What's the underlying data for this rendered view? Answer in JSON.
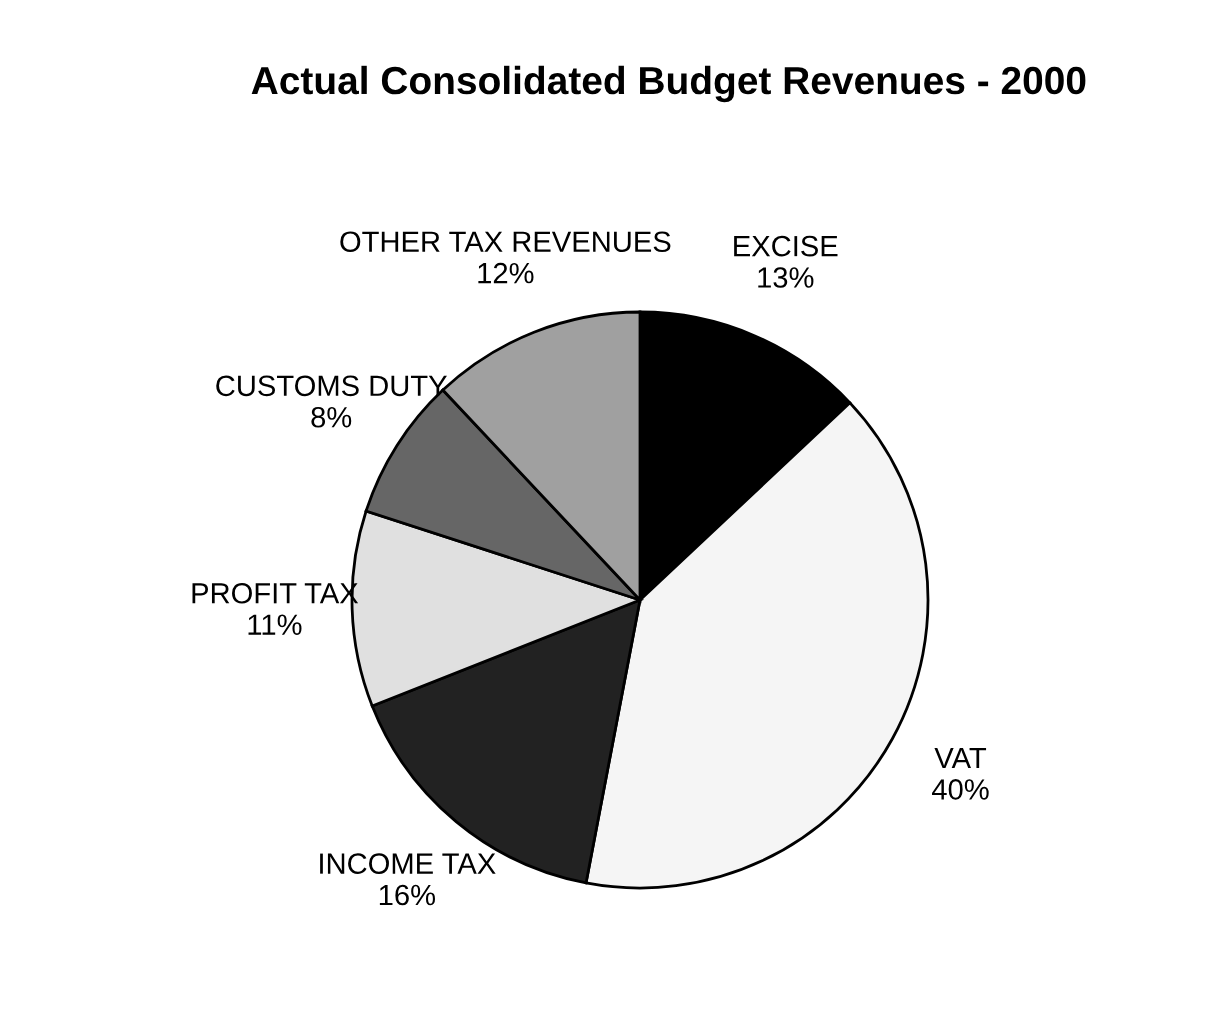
{
  "chart_data": {
    "type": "pie",
    "title": "Actual Consolidated Budget Revenues - 2000",
    "categories": [
      "EXCISE",
      "VAT",
      "INCOME TAX",
      "PROFIT TAX",
      "CUSTOMS DUTY",
      "OTHER TAX REVENUES"
    ],
    "values": [
      13,
      40,
      16,
      11,
      8,
      12
    ],
    "value_labels": [
      "13%",
      "40%",
      "16%",
      "11%",
      "8%",
      "12%"
    ],
    "colors": [
      "#000000",
      "#f5f5f5",
      "#222222",
      "#e0e0e0",
      "#666666",
      "#a0a0a0"
    ]
  }
}
